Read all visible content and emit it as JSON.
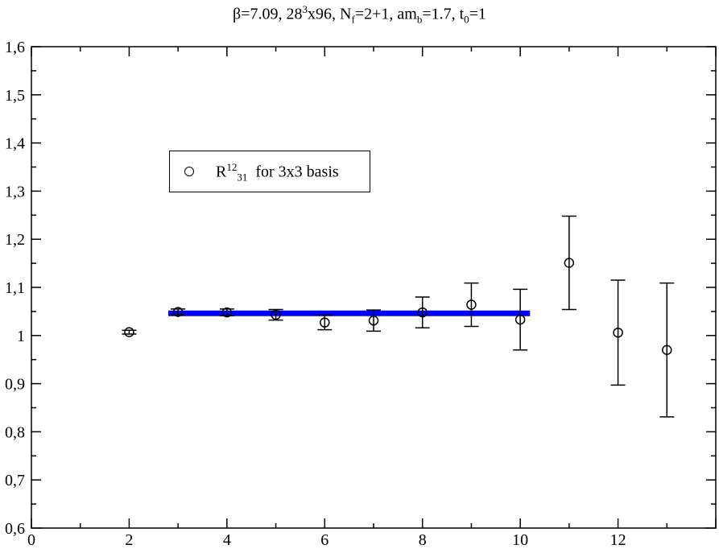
{
  "title": {
    "beta": "β=7.09, 28",
    "vol_exp": "3",
    "vol_rest": "x96, N",
    "nf_sub": "f",
    "nf_rest": "=2+1, am",
    "amb_sub": "b",
    "amb_rest": "=1.7, t",
    "t0_sub": "0",
    "t0_rest": "=1"
  },
  "legend": {
    "symbol": "circle",
    "label_main": "R",
    "label_sup": "12",
    "label_sub": "31",
    "label_rest": "for 3x3 basis"
  },
  "chart_data": {
    "type": "scatter",
    "xlim": [
      0,
      14
    ],
    "ylim": [
      0.6,
      1.6
    ],
    "x_ticks": [
      0,
      2,
      4,
      6,
      8,
      10,
      12
    ],
    "x_tick_labels": [
      "0",
      "2",
      "4",
      "6",
      "8",
      "10",
      "12"
    ],
    "y_ticks": [
      0.6,
      0.7,
      0.8,
      0.9,
      1.0,
      1.1,
      1.2,
      1.3,
      1.4,
      1.5,
      1.6
    ],
    "y_tick_labels": [
      "0,6",
      "0,7",
      "0,8",
      "0,9",
      "1",
      "1,1",
      "1,2",
      "1,3",
      "1,4",
      "1,5",
      "1,6"
    ],
    "grid": false,
    "legend_position": "upper-left",
    "series": [
      {
        "marker": "open-circle",
        "color": "#000000",
        "points": [
          {
            "x": 2,
            "y": 1.007,
            "err": 0.004
          },
          {
            "x": 3,
            "y": 1.049,
            "err": 0.006
          },
          {
            "x": 4,
            "y": 1.048,
            "err": 0.007
          },
          {
            "x": 5,
            "y": 1.043,
            "err": 0.011
          },
          {
            "x": 6,
            "y": 1.027,
            "err": 0.015
          },
          {
            "x": 7,
            "y": 1.031,
            "err": 0.022
          },
          {
            "x": 8,
            "y": 1.048,
            "err": 0.032
          },
          {
            "x": 9,
            "y": 1.064,
            "err": 0.045
          },
          {
            "x": 10,
            "y": 1.033,
            "err": 0.063
          },
          {
            "x": 11,
            "y": 1.151,
            "err": 0.097
          },
          {
            "x": 12,
            "y": 1.006,
            "err": 0.109
          },
          {
            "x": 13,
            "y": 0.97,
            "err": 0.139
          }
        ]
      }
    ],
    "fit": {
      "color": "#0000ff",
      "x_start": 2.8,
      "x_end": 10.2,
      "y": 1.046
    }
  }
}
